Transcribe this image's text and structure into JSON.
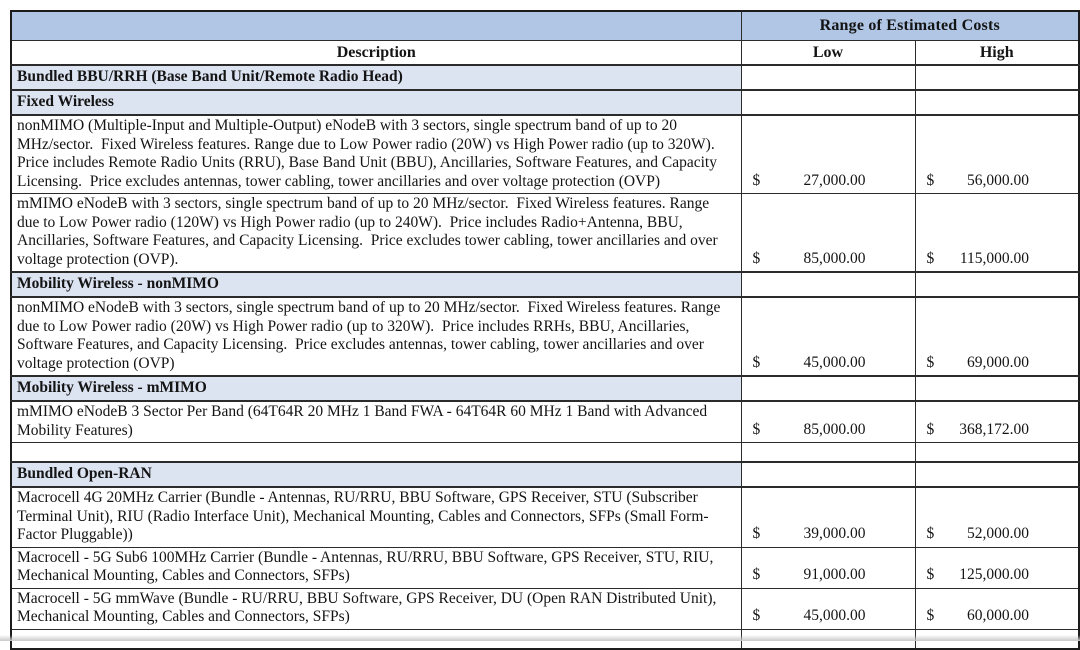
{
  "table": {
    "cost_range_header": "Range of Estimated Costs",
    "description_header": "Description",
    "low_header": "Low",
    "high_header": "High",
    "currency_symbol": "$",
    "colors": {
      "header_blue": "#b0c6e4",
      "section_blue": "#dce3f1",
      "border": "#2b2b2b"
    },
    "rows": [
      {
        "type": "section",
        "label": "Bundled BBU/RRH (Base Band Unit/Remote Radio Head)"
      },
      {
        "type": "section",
        "label": "Fixed Wireless"
      },
      {
        "type": "item",
        "description": "nonMIMO (Multiple-Input and Multiple-Output) eNodeB with 3 sectors, single spectrum band of up to 20 MHz/sector.  Fixed Wireless features. Range due to Low Power radio (20W) vs High Power radio (up to 320W).  Price includes Remote Radio Units (RRU), Base Band Unit (BBU), Ancillaries, Software Features, and Capacity Licensing.  Price excludes antennas, tower cabling, tower ancillaries and over voltage protection (OVP)",
        "low": "27,000.00",
        "high": "56,000.00"
      },
      {
        "type": "item",
        "description": "mMIMO eNodeB with 3 sectors, single spectrum band of up to 20 MHz/sector.  Fixed Wireless features. Range due to Low Power radio (120W) vs High Power radio (up to 240W).  Price includes Radio+Antenna, BBU, Ancillaries, Software Features, and Capacity Licensing.  Price excludes tower cabling, tower ancillaries and over voltage protection (OVP).",
        "low": "85,000.00",
        "high": "115,000.00"
      },
      {
        "type": "section",
        "label": "Mobility Wireless - nonMIMO"
      },
      {
        "type": "item",
        "description": "nonMIMO eNodeB with 3 sectors, single spectrum band of up to 20 MHz/sector.  Fixed Wireless features. Range due to Low Power radio (20W) vs High Power radio (up to 320W).  Price includes RRHs, BBU, Ancillaries, Software Features, and Capacity Licensing.  Price excludes antennas, tower cabling, tower ancillaries and over voltage protection (OVP)",
        "low": "45,000.00",
        "high": "69,000.00"
      },
      {
        "type": "section",
        "label": "Mobility Wireless - mMIMO"
      },
      {
        "type": "item",
        "description": "mMIMO eNodeB 3 Sector Per Band (64T64R 20 MHz 1 Band FWA - 64T64R 60 MHz 1 Band with Advanced Mobility Features)",
        "low": "85,000.00",
        "high": "368,172.00"
      },
      {
        "type": "spacer"
      },
      {
        "type": "section",
        "label": "Bundled Open-RAN"
      },
      {
        "type": "item",
        "description": "Macrocell 4G 20MHz Carrier (Bundle - Antennas, RU/RRU, BBU Software, GPS Receiver, STU (Subscriber Terminal Unit), RIU (Radio Interface Unit), Mechanical Mounting, Cables and Connectors, SFPs (Small Form-Factor Pluggable))",
        "low": "39,000.00",
        "high": "52,000.00"
      },
      {
        "type": "item",
        "description": "Macrocell - 5G Sub6 100MHz Carrier (Bundle - Antennas, RU/RRU, BBU Software, GPS Receiver, STU, RIU, Mechanical Mounting, Cables and Connectors, SFPs)",
        "low": "91,000.00",
        "high": "125,000.00"
      },
      {
        "type": "item",
        "description": "Macrocell - 5G mmWave (Bundle - RU/RRU, BBU Software, GPS Receiver, DU (Open RAN Distributed Unit), Mechanical Mounting, Cables and Connectors, SFPs)",
        "low": "45,000.00",
        "high": "60,000.00"
      },
      {
        "type": "spacer"
      }
    ]
  }
}
